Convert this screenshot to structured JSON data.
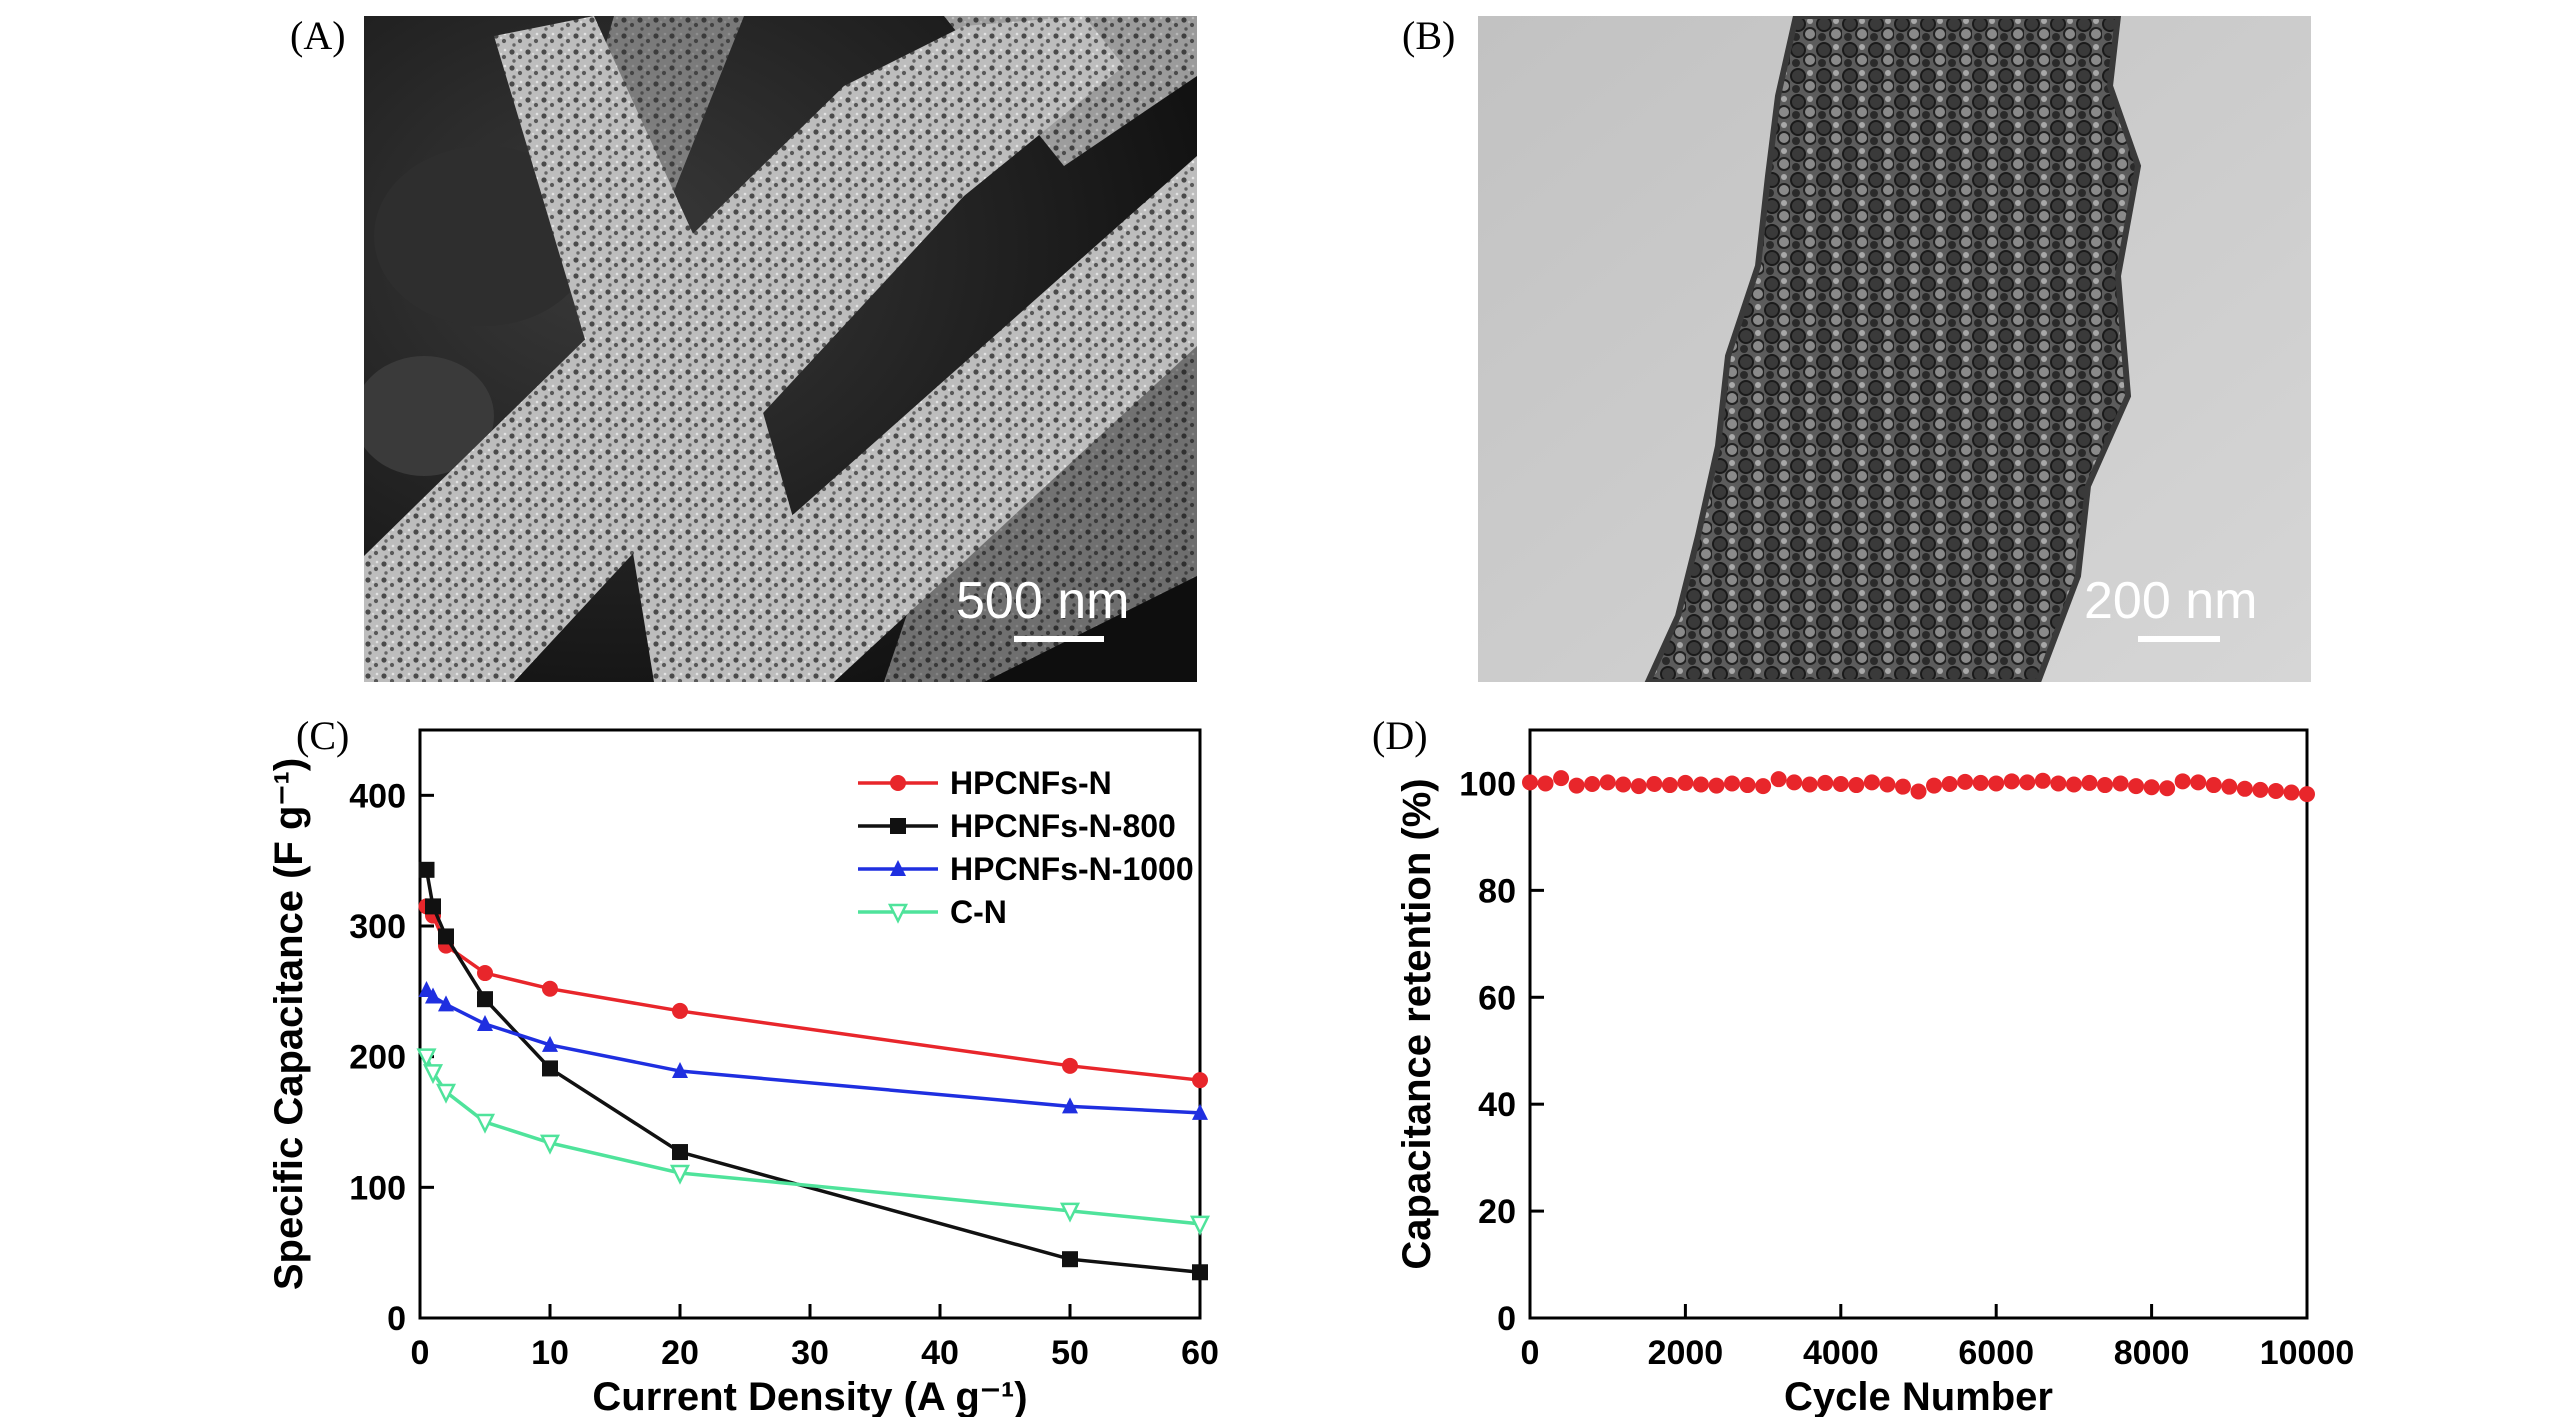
{
  "panels": {
    "a": {
      "label": "(A)",
      "scale_text": "500 nm"
    },
    "b": {
      "label": "(B)",
      "scale_text": "200 nm"
    },
    "c": {
      "label": "(C)"
    },
    "d": {
      "label": "(D)"
    }
  },
  "chart_data": [
    {
      "panel": "C",
      "type": "line",
      "xlabel": "Current Density (A g⁻¹)",
      "ylabel": "Specific Capacitance (F g⁻¹)",
      "xlim": [
        0,
        60
      ],
      "ylim": [
        0,
        450
      ],
      "xticks": [
        0,
        10,
        20,
        30,
        40,
        50,
        60
      ],
      "yticks": [
        0,
        100,
        200,
        300,
        400
      ],
      "legend_position": "top-right",
      "grid": false,
      "series": [
        {
          "name": "HPCNFs-N",
          "color": "#e8262b",
          "marker": "circle",
          "x": [
            0.5,
            1,
            2,
            5,
            10,
            20,
            50,
            60
          ],
          "y": [
            315,
            308,
            285,
            264,
            252,
            235,
            193,
            182
          ]
        },
        {
          "name": "HPCNFs-N-800",
          "color": "#111111",
          "marker": "square",
          "x": [
            0.5,
            1,
            2,
            5,
            10,
            20,
            50,
            60
          ],
          "y": [
            343,
            315,
            292,
            244,
            191,
            127,
            45,
            35
          ]
        },
        {
          "name": "HPCNFs-N-1000",
          "color": "#1f2fe0",
          "marker": "triangle",
          "x": [
            0.5,
            1,
            2,
            5,
            10,
            20,
            50,
            60
          ],
          "y": [
            251,
            246,
            240,
            225,
            209,
            189,
            162,
            157
          ]
        },
        {
          "name": "C-N",
          "color": "#4fe39b",
          "marker": "triangle-down",
          "x": [
            0.5,
            1,
            2,
            5,
            10,
            20,
            50,
            60
          ],
          "y": [
            200,
            188,
            173,
            150,
            134,
            111,
            82,
            72
          ]
        }
      ]
    },
    {
      "panel": "D",
      "type": "scatter",
      "xlabel": "Cycle Number",
      "ylabel": "Capacitance retention (%)",
      "xlim": [
        0,
        10000
      ],
      "ylim": [
        0,
        110
      ],
      "xticks": [
        0,
        2000,
        4000,
        6000,
        8000,
        10000
      ],
      "yticks": [
        0,
        20,
        40,
        60,
        80,
        100
      ],
      "grid": false,
      "series": [
        {
          "color": "#e8262b",
          "marker": "circle",
          "x": [
            0,
            200,
            400,
            600,
            800,
            1000,
            1200,
            1400,
            1600,
            1800,
            2000,
            2200,
            2400,
            2600,
            2800,
            3000,
            3200,
            3400,
            3600,
            3800,
            4000,
            4200,
            4400,
            4600,
            4800,
            5000,
            5200,
            5400,
            5600,
            5800,
            6000,
            6200,
            6400,
            6600,
            6800,
            7000,
            7200,
            7400,
            7600,
            7800,
            8000,
            8200,
            8400,
            8600,
            8800,
            9000,
            9200,
            9400,
            9600,
            9800,
            10000
          ],
          "y": [
            100.2,
            100.0,
            101.0,
            99.6,
            99.9,
            100.2,
            99.8,
            99.5,
            99.9,
            99.7,
            100.1,
            99.8,
            99.6,
            100.0,
            99.7,
            99.5,
            100.8,
            100.2,
            99.8,
            100.1,
            99.9,
            99.7,
            100.2,
            99.8,
            99.4,
            98.5,
            99.6,
            99.9,
            100.3,
            100.1,
            100.0,
            100.4,
            100.2,
            100.5,
            100.0,
            99.8,
            100.1,
            99.7,
            100.0,
            99.5,
            99.3,
            99.1,
            100.4,
            100.2,
            99.7,
            99.4,
            99.0,
            98.8,
            98.6,
            98.3,
            98.0
          ]
        }
      ]
    }
  ]
}
